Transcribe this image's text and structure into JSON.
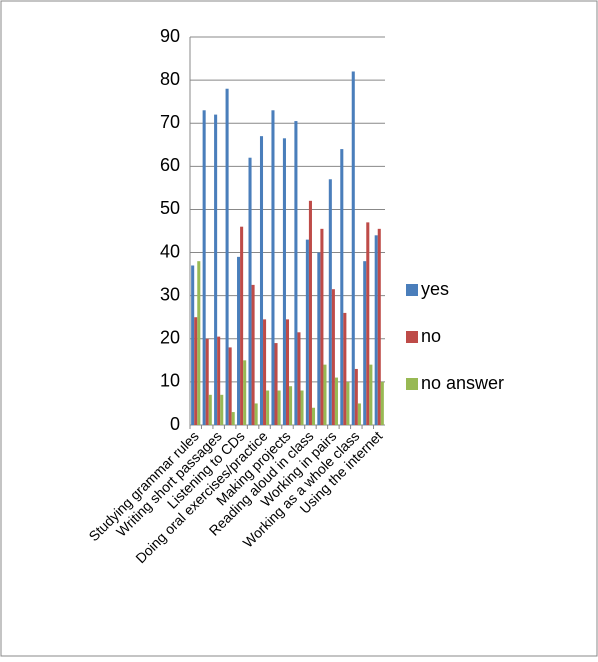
{
  "chart_data": {
    "type": "bar",
    "categories": [
      "Studying grammar rules",
      null,
      "Writing short passages",
      null,
      "Listening to CDs",
      null,
      "Doing oral exercises/practice",
      null,
      "Making projects",
      null,
      "Reading aloud in class",
      null,
      "Working in pairs",
      null,
      "Working as a whole class",
      null,
      "Using the internet"
    ],
    "series": [
      {
        "name": "yes",
        "color": "#4a7ebb",
        "values": [
          37,
          73,
          72,
          78,
          39,
          62,
          67,
          73,
          66.5,
          70.5,
          43,
          40,
          57,
          64,
          82,
          38,
          44
        ]
      },
      {
        "name": "no",
        "color": "#be4b48",
        "values": [
          25,
          20,
          20.5,
          18,
          46,
          32.5,
          24.5,
          19,
          24.5,
          21.5,
          52,
          45.5,
          31.5,
          26,
          13,
          47,
          45.5
        ]
      },
      {
        "name": "no answer",
        "color": "#98b954",
        "values": [
          38,
          7,
          7,
          3,
          15,
          5,
          8,
          8,
          9,
          8,
          4,
          14,
          11,
          10,
          5,
          14,
          10
        ]
      }
    ],
    "ylim": [
      0,
      90
    ],
    "yticks": [
      0,
      10,
      20,
      30,
      40,
      50,
      60,
      70,
      80,
      90
    ],
    "grid": true,
    "legend": "right"
  }
}
